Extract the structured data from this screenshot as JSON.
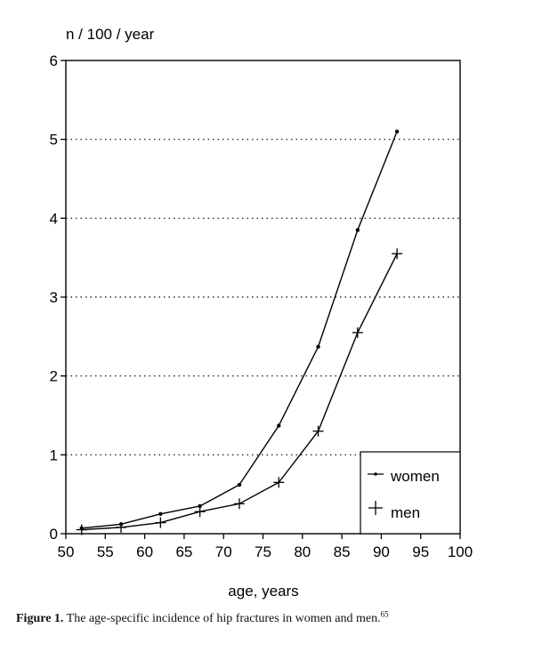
{
  "chart_data": {
    "type": "line",
    "title": "",
    "ylabel": "n / 100 / year",
    "xlabel": "age, years",
    "xlim": [
      50,
      100
    ],
    "ylim": [
      0,
      6
    ],
    "xticks": [
      50,
      55,
      60,
      65,
      70,
      75,
      80,
      85,
      90,
      95,
      100
    ],
    "yticks": [
      0,
      1,
      2,
      3,
      4,
      5,
      6
    ],
    "grid": "horizontal dotted",
    "legend_position": "bottom-right",
    "series": [
      {
        "name": "women",
        "marker": "dot",
        "x": [
          52,
          57,
          62,
          67,
          72,
          77,
          82,
          87,
          92
        ],
        "y": [
          0.07,
          0.12,
          0.25,
          0.35,
          0.62,
          1.37,
          2.37,
          3.85,
          5.1
        ]
      },
      {
        "name": "men",
        "marker": "plus",
        "x": [
          52,
          57,
          62,
          67,
          72,
          77,
          82,
          87,
          92
        ],
        "y": [
          0.05,
          0.08,
          0.14,
          0.28,
          0.38,
          0.65,
          1.3,
          2.55,
          3.55
        ]
      }
    ]
  },
  "caption": {
    "label": "Figure 1.",
    "text": " The age-specific incidence of hip fractures in women and men.",
    "ref": "65"
  }
}
